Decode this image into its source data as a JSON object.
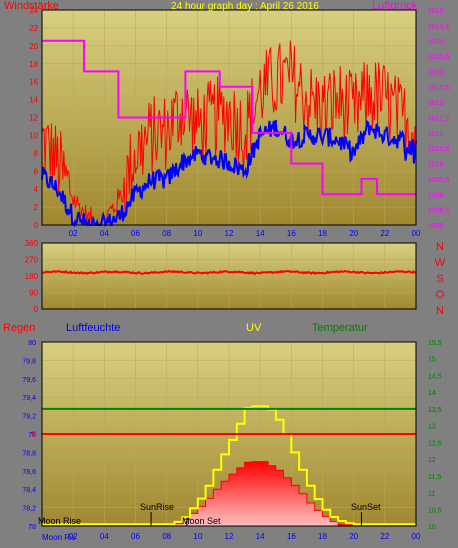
{
  "header": {
    "left_label": "Windstärke",
    "title": "24 hour graph day : April 26 2016",
    "right_label": "Luftdruck"
  },
  "compass": [
    "N",
    "W",
    "S",
    "O",
    "N"
  ],
  "bottom_labels": {
    "regen": "Regen",
    "luftfeuchte": "Luftfeuchte",
    "uv": "UV",
    "temperatur": "Temperatur"
  },
  "annotations": {
    "sunrise": "SunRise",
    "sunset": "SunSet",
    "moonrise": "Moon Rise",
    "moonset": "Moon Set",
    "moonrise_axis": "Moon Ris"
  },
  "colors": {
    "plot_bg_top": "#d8d080",
    "plot_bg_bottom": "#a08830",
    "frame": "#000000",
    "wind_max": "#ff0000",
    "wind_avg": "#0000ff",
    "pressure": "#ff00ff",
    "direction": "#ff0000",
    "uv": "#ffff00",
    "solar": "#ff0000",
    "temperature": "#008000",
    "rain": "#ff0000",
    "left_axis_text": "#ff0000",
    "pressure_axis_text": "#ff00ff",
    "title_text": "#ffff00",
    "humidity_text": "#0000ff",
    "temp_axis_text": "#008000",
    "compass_text": "#ff0000",
    "hour_text": "#0000ff",
    "annotation_text": "#000000"
  },
  "chart_data": [
    {
      "id": "wind_pressure",
      "type": "line",
      "hour_labels": [
        "02",
        "04",
        "06",
        "08",
        "10",
        "12",
        "14",
        "16",
        "18",
        "20",
        "22",
        "00"
      ],
      "x_range_hours": [
        0,
        24
      ],
      "y_left": {
        "range": [
          0,
          24
        ],
        "ticks": [
          "0",
          "2",
          "4",
          "6",
          "8",
          "10",
          "12",
          "14",
          "16",
          "18",
          "20",
          "22",
          "24"
        ]
      },
      "y_right": {
        "range": [
          1008,
          1015
        ],
        "ticks": [
          "1008",
          "1008,5",
          "1009",
          "1009,5",
          "1010",
          "1010,5",
          "1011",
          "1011,5",
          "1012",
          "1012,5",
          "1013",
          "1013,5",
          "1014",
          "1014,5",
          "1015"
        ]
      },
      "wind_max_profile": [
        [
          0,
          9.5
        ],
        [
          1,
          7
        ],
        [
          2,
          3
        ],
        [
          3,
          0.5
        ],
        [
          4,
          0.5
        ],
        [
          5,
          3
        ],
        [
          6,
          8
        ],
        [
          7,
          10
        ],
        [
          8,
          10.5
        ],
        [
          9,
          13
        ],
        [
          10,
          11
        ],
        [
          11,
          12
        ],
        [
          12,
          12.5
        ],
        [
          13,
          10.5
        ],
        [
          14,
          15
        ],
        [
          15,
          16
        ],
        [
          16,
          16.5
        ],
        [
          17,
          14
        ],
        [
          18,
          13
        ],
        [
          19,
          14
        ],
        [
          20,
          12.5
        ],
        [
          21,
          14.5
        ],
        [
          22,
          14
        ],
        [
          23,
          12
        ],
        [
          24,
          11
        ]
      ],
      "wind_avg_profile": [
        [
          0,
          5.5
        ],
        [
          1,
          4
        ],
        [
          2,
          1
        ],
        [
          3,
          0
        ],
        [
          4,
          0
        ],
        [
          5,
          1
        ],
        [
          6,
          3.5
        ],
        [
          7,
          5
        ],
        [
          8,
          5
        ],
        [
          9,
          7
        ],
        [
          10,
          8
        ],
        [
          11,
          7.5
        ],
        [
          12,
          7
        ],
        [
          13,
          6
        ],
        [
          14,
          10
        ],
        [
          15,
          11
        ],
        [
          16,
          9.5
        ],
        [
          17,
          10
        ],
        [
          18,
          10
        ],
        [
          19,
          9.5
        ],
        [
          20,
          8
        ],
        [
          21,
          11
        ],
        [
          22,
          10
        ],
        [
          23,
          9.5
        ],
        [
          24,
          9
        ]
      ],
      "pressure_steps": [
        [
          0,
          1014
        ],
        [
          2.7,
          1013
        ],
        [
          4.9,
          1011.5
        ],
        [
          9.2,
          1013
        ],
        [
          10.5,
          1013
        ],
        [
          11.4,
          1012.5
        ],
        [
          13.5,
          1011
        ],
        [
          16,
          1010
        ],
        [
          18,
          1009
        ],
        [
          20.5,
          1009.5
        ],
        [
          21.5,
          1009
        ],
        [
          24,
          1009
        ]
      ]
    },
    {
      "id": "wind_direction",
      "type": "line",
      "y_range": [
        0,
        360
      ],
      "y_ticks": [
        "0",
        "90",
        "180",
        "270",
        "360"
      ],
      "mean_deg": 200,
      "variation_deg": 8
    },
    {
      "id": "solar_uv_temp",
      "type": "area",
      "hour_labels": [
        "02",
        "04",
        "06",
        "08",
        "10",
        "12",
        "14",
        "16",
        "18",
        "20",
        "22",
        "00"
      ],
      "y_left": {
        "range": [
          78,
          80
        ],
        "ticks": [
          "78",
          "78,2",
          "78,4",
          "78,6",
          "78,8",
          "79",
          "79,2",
          "79,4",
          "79,6",
          "79,8",
          "80"
        ]
      },
      "y_right": {
        "range": [
          10,
          15.5
        ],
        "ticks": [
          "10",
          "10,5",
          "11",
          "11,5",
          "12",
          "12,5",
          "13",
          "13,5",
          "14",
          "14,5",
          "15",
          "15,5"
        ]
      },
      "rain_zero_label": "0",
      "rain_line_level": 79,
      "temperature_level": 13.5,
      "solar_profile": [
        [
          0,
          78
        ],
        [
          8.5,
          78
        ],
        [
          9.5,
          78.1
        ],
        [
          10.5,
          78.25
        ],
        [
          11.5,
          78.45
        ],
        [
          12.5,
          78.6
        ],
        [
          13.3,
          78.7
        ],
        [
          14.3,
          78.7
        ],
        [
          15.3,
          78.6
        ],
        [
          16.5,
          78.4
        ],
        [
          17.5,
          78.2
        ],
        [
          18.5,
          78.07
        ],
        [
          19.3,
          78
        ],
        [
          24,
          78
        ]
      ],
      "uv_profile": [
        [
          0,
          78.02
        ],
        [
          8.5,
          78.02
        ],
        [
          9.3,
          78.1
        ],
        [
          10.5,
          78.35
        ],
        [
          11.5,
          78.7
        ],
        [
          12.3,
          78.95
        ],
        [
          13,
          79.2
        ],
        [
          13.3,
          79.3
        ],
        [
          14.6,
          79.3
        ],
        [
          15.5,
          79.1
        ],
        [
          16.5,
          78.7
        ],
        [
          17.5,
          78.35
        ],
        [
          18.5,
          78.12
        ],
        [
          19.3,
          78.05
        ],
        [
          20,
          78.02
        ],
        [
          24,
          78.02
        ]
      ],
      "sunrise_hour": 7,
      "sunset_hour": 20.5
    }
  ]
}
